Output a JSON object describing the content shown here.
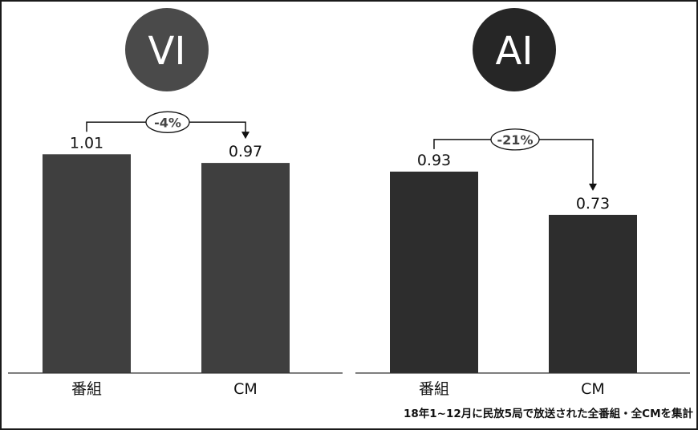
{
  "chart_data": [
    {
      "type": "bar",
      "title": "VI",
      "categories": [
        "番組",
        "CM"
      ],
      "values": [
        1.01,
        0.97
      ],
      "value_labels": [
        "1.01",
        "0.97"
      ],
      "change_label": "-4%",
      "ylim": [
        0,
        1.2
      ],
      "bar_color": "#3f3f3f",
      "badge_color": "#4a4a4a",
      "grid": false
    },
    {
      "type": "bar",
      "title": "AI",
      "categories": [
        "番組",
        "CM"
      ],
      "values": [
        0.93,
        0.73
      ],
      "value_labels": [
        "0.93",
        "0.73"
      ],
      "change_label": "-21%",
      "ylim": [
        0,
        1.2
      ],
      "bar_color": "#2d2d2d",
      "badge_color": "#262626",
      "grid": false
    }
  ],
  "footnote": "18年1~12月に民放5局で放送された全番組・全CMを集計"
}
